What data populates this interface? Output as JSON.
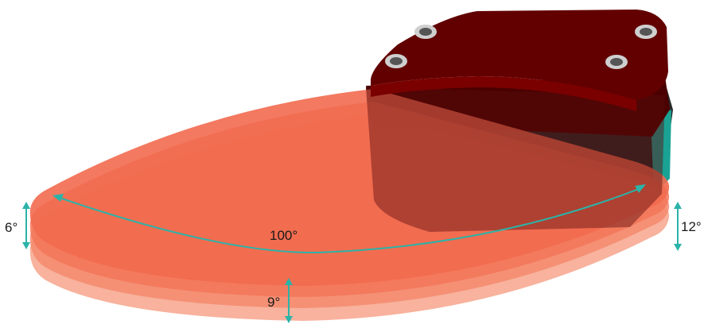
{
  "diagram": {
    "labels": {
      "horizontal_angle": "100°",
      "left_vertical_angle": "6°",
      "right_vertical_angle": "12°",
      "bottom_vertical_angle": "9°"
    },
    "beam_layers": 4,
    "colors": {
      "beam_fill": "#f26a4f",
      "beam_light": "#f7a58c",
      "housing_top": "#5e0000",
      "housing_side": "#2a2a2a",
      "accent_teal": "#1aa394",
      "arrow": "#2bb3a8"
    }
  }
}
